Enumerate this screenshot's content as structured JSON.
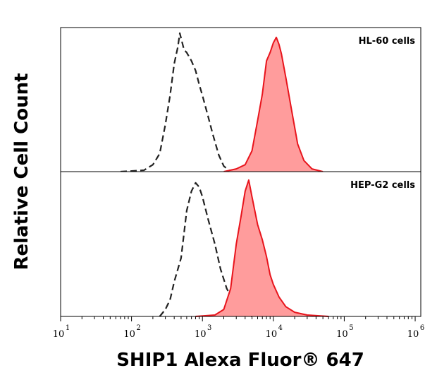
{
  "chart_data": {
    "type": "area",
    "xlabel": "SHIP1 Alexa Fluor® 647",
    "ylabel": "Relative Cell Count",
    "x_scale": "log",
    "xlim": [
      10,
      1200000
    ],
    "x_ticks": [
      {
        "value": 10,
        "base": "10",
        "exp": "1"
      },
      {
        "value": 100,
        "base": "10",
        "exp": "2"
      },
      {
        "value": 1000,
        "base": "10",
        "exp": "3"
      },
      {
        "value": 10000,
        "base": "10",
        "exp": "4"
      },
      {
        "value": 100000,
        "base": "10",
        "exp": "5"
      },
      {
        "value": 1000000,
        "base": "10",
        "exp": "6"
      }
    ],
    "panels": [
      {
        "label": "HL-60 cells",
        "series": [
          {
            "style": "dashed",
            "color": "#222222",
            "points": [
              [
                70,
                0
              ],
              [
                150,
                0.01
              ],
              [
                200,
                0.05
              ],
              [
                250,
                0.13
              ],
              [
                300,
                0.34
              ],
              [
                350,
                0.55
              ],
              [
                400,
                0.78
              ],
              [
                450,
                0.9
              ],
              [
                480,
                1.0
              ],
              [
                550,
                0.88
              ],
              [
                600,
                0.86
              ],
              [
                700,
                0.8
              ],
              [
                800,
                0.73
              ],
              [
                900,
                0.63
              ],
              [
                1000,
                0.55
              ],
              [
                1200,
                0.4
              ],
              [
                1400,
                0.27
              ],
              [
                1700,
                0.12
              ],
              [
                2000,
                0.04
              ],
              [
                2500,
                0.0
              ]
            ]
          },
          {
            "style": "filled",
            "color": "#e8141c",
            "fill": "#ff9c9c",
            "points": [
              [
                2000,
                0
              ],
              [
                3000,
                0.02
              ],
              [
                4000,
                0.05
              ],
              [
                5000,
                0.15
              ],
              [
                6000,
                0.37
              ],
              [
                7000,
                0.56
              ],
              [
                8000,
                0.8
              ],
              [
                9000,
                0.86
              ],
              [
                10000,
                0.93
              ],
              [
                11000,
                0.97
              ],
              [
                12000,
                0.92
              ],
              [
                13000,
                0.85
              ],
              [
                15000,
                0.68
              ],
              [
                18000,
                0.45
              ],
              [
                22000,
                0.2
              ],
              [
                27000,
                0.08
              ],
              [
                35000,
                0.02
              ],
              [
                50000,
                0.0
              ]
            ]
          }
        ]
      },
      {
        "label": "HEP-G2 cells",
        "series": [
          {
            "style": "dashed",
            "color": "#222222",
            "points": [
              [
                250,
                0
              ],
              [
                300,
                0.05
              ],
              [
                350,
                0.12
              ],
              [
                400,
                0.25
              ],
              [
                500,
                0.42
              ],
              [
                600,
                0.76
              ],
              [
                700,
                0.9
              ],
              [
                800,
                0.96
              ],
              [
                900,
                0.93
              ],
              [
                1000,
                0.86
              ],
              [
                1200,
                0.7
              ],
              [
                1500,
                0.52
              ],
              [
                1800,
                0.34
              ],
              [
                2200,
                0.2
              ],
              [
                2700,
                0.12
              ],
              [
                3200,
                0.07
              ],
              [
                4000,
                0.02
              ],
              [
                5000,
                0.0
              ]
            ]
          },
          {
            "style": "filled",
            "color": "#e8141c",
            "fill": "#ff9c9c",
            "points": [
              [
                800,
                0
              ],
              [
                1500,
                0.01
              ],
              [
                2000,
                0.05
              ],
              [
                2500,
                0.2
              ],
              [
                3000,
                0.52
              ],
              [
                3500,
                0.72
              ],
              [
                4000,
                0.9
              ],
              [
                4500,
                0.98
              ],
              [
                5000,
                0.86
              ],
              [
                6000,
                0.66
              ],
              [
                7000,
                0.55
              ],
              [
                8000,
                0.43
              ],
              [
                9000,
                0.3
              ],
              [
                10000,
                0.23
              ],
              [
                12000,
                0.14
              ],
              [
                15000,
                0.07
              ],
              [
                20000,
                0.03
              ],
              [
                30000,
                0.01
              ],
              [
                60000,
                0.0
              ]
            ]
          }
        ]
      }
    ]
  }
}
